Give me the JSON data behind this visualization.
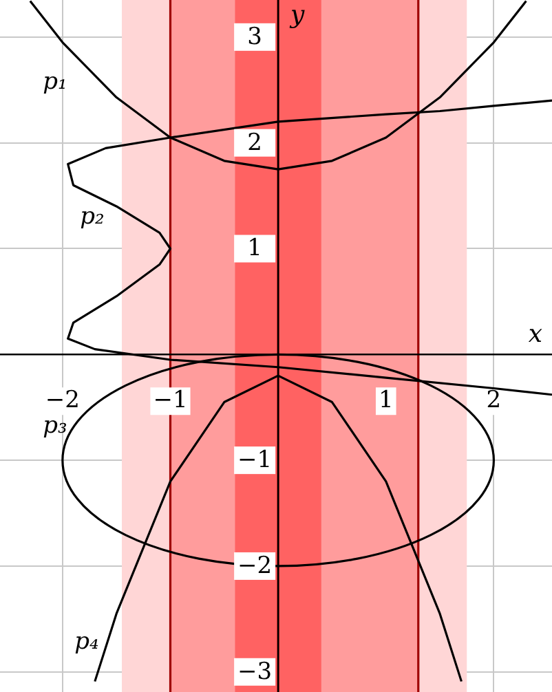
{
  "chart_data": {
    "type": "line",
    "xlabel": "x",
    "ylabel": "y",
    "xlim": [
      -2.58,
      2.54
    ],
    "ylim": [
      -3.19,
      3.35
    ],
    "xticks": [
      -2,
      -1,
      1,
      2
    ],
    "yticks": [
      -3,
      -2,
      -1,
      1,
      2,
      3
    ],
    "grid": true,
    "marker": "none",
    "line_style": "solid",
    "series": [
      {
        "color": "#000000",
        "x": [
          -2.3,
          -2,
          -1.5,
          -1,
          -0.5,
          0,
          0.5,
          1,
          1.5,
          2,
          2.3
        ],
        "values": [
          3.34,
          2.95,
          2.43,
          2.05,
          1.83,
          1.75,
          1.83,
          2.05,
          2.43,
          2.95,
          3.34
        ]
      },
      {
        "color": "#000000",
        "x": [
          2.54,
          2,
          1.5,
          1,
          0,
          -1,
          -1.6,
          -1.95,
          -1.9,
          -1.5,
          -1.1,
          -1,
          -1.1,
          -1.5,
          -1.9,
          -1.95,
          -1.7,
          -1,
          0,
          1,
          2,
          2.54
        ],
        "values": [
          2.4,
          2.35,
          2.3,
          2.27,
          2.2,
          2.05,
          1.95,
          1.8,
          1.6,
          1.4,
          1.15,
          1,
          0.85,
          0.55,
          0.3,
          0.15,
          0.05,
          -0.05,
          -0.12,
          -0.22,
          -0.32,
          -0.38
        ]
      },
      {
        "color": "#000000",
        "x": [
          -1.7,
          -1.5,
          -1,
          -0.5,
          0,
          0.5,
          1,
          1.5,
          1.7
        ],
        "values": [
          -3.09,
          -2.45,
          -1.2,
          -0.45,
          -0.2,
          -0.45,
          -1.2,
          -2.45,
          -3.09
        ]
      }
    ],
    "bands": [
      {
        "axis": "x",
        "from": -1.45,
        "to": 1.75,
        "color": "#ffd6d6"
      },
      {
        "axis": "x",
        "from": -1,
        "to": 1.3,
        "color": "#ff9c9c"
      },
      {
        "axis": "x",
        "from": -0.4,
        "to": 0.4,
        "color": "#ff6262"
      }
    ],
    "ref_lines": [
      {
        "axis": "x",
        "value": -1,
        "color": "#a00000"
      },
      {
        "axis": "x",
        "value": 0,
        "color": "#a00000"
      },
      {
        "axis": "x",
        "value": 1.3,
        "color": "#a00000"
      }
    ],
    "annotations": [
      "p₁",
      "p₂",
      "p₃",
      "p₄"
    ]
  }
}
